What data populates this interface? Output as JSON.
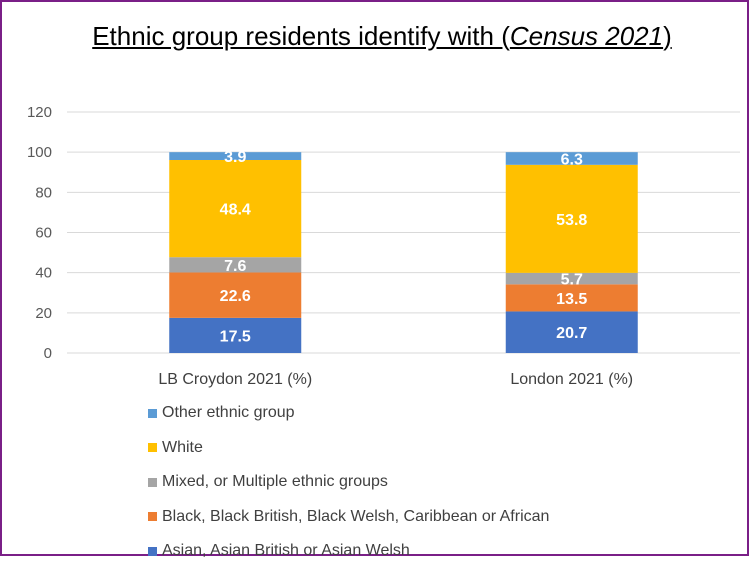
{
  "chart_data": {
    "type": "bar",
    "stacked": true,
    "title_main": "Ethnic group residents identify with (",
    "title_italic": "Census 2021",
    "title_end": ")",
    "categories": [
      "LB Croydon 2021 (%)",
      "London 2021 (%)"
    ],
    "ylim": [
      0,
      120
    ],
    "yticks": [
      "0",
      "20",
      "40",
      "60",
      "80",
      "100",
      "120"
    ],
    "grid": true,
    "legend_position": "bottom",
    "series": [
      {
        "name": "Asian, Asian British or Asian Welsh",
        "values": [
          17.5,
          20.7
        ],
        "color": "#4472c4"
      },
      {
        "name": "Black, Black British, Black Welsh, Caribbean or African",
        "values": [
          22.6,
          13.5
        ],
        "color": "#ed7d31"
      },
      {
        "name": "Mixed, or Multiple ethnic groups",
        "values": [
          7.6,
          5.7
        ],
        "color": "#a5a5a5"
      },
      {
        "name": "White",
        "values": [
          48.4,
          53.8
        ],
        "color": "#ffc000"
      },
      {
        "name": "Other ethnic group",
        "values": [
          3.9,
          6.3
        ],
        "color": "#5b9bd5"
      }
    ],
    "legend_order": [
      "Other ethnic group",
      "White",
      "Mixed, or Multiple ethnic groups",
      "Black, Black British, Black Welsh, Caribbean or African",
      "Asian, Asian British or Asian Welsh"
    ]
  }
}
